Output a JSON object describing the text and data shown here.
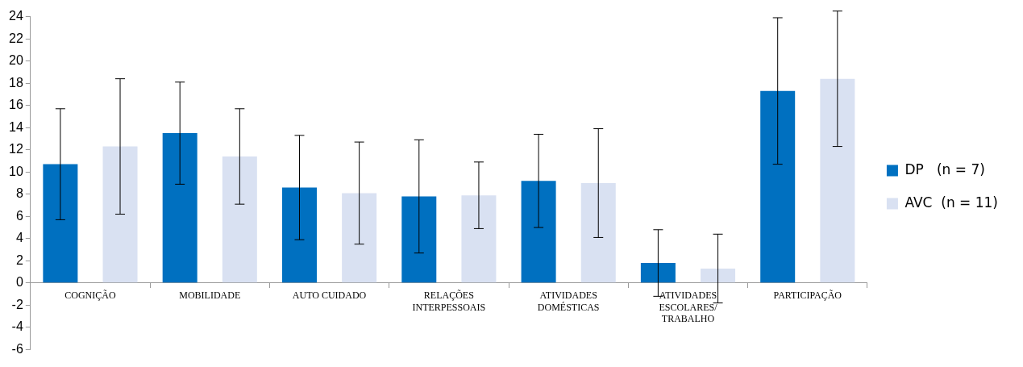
{
  "chart_data": {
    "type": "bar",
    "categories": [
      "COGNIÇÃO",
      "MOBILIDADE",
      "AUTO CUIDADO",
      "RELAÇÕES\nINTERPESSOAIS",
      "ATIVIDADES\nDOMÉSTICAS",
      "ATIVIDADES\nESCOLARES/\nTRABALHO",
      "PARTICIPAÇÃO"
    ],
    "series": [
      {
        "name": "DP   (n = 7)",
        "color": "#0070c0",
        "values": [
          10.7,
          13.5,
          8.6,
          7.8,
          9.2,
          1.8,
          17.3
        ],
        "errors": [
          5,
          4.6,
          4.7,
          5.1,
          4.2,
          3,
          6.6
        ]
      },
      {
        "name": "AVC  (n = 11)",
        "color": "#d9e1f2",
        "values": [
          12.3,
          11.4,
          8.1,
          7.9,
          9.0,
          1.3,
          18.4
        ],
        "errors": [
          6.1,
          4.3,
          4.6,
          3,
          4.9,
          3.1,
          6.1
        ]
      }
    ],
    "ylim": [
      -6,
      24
    ],
    "yticks": [
      -6,
      -4,
      -2,
      0,
      2,
      4,
      6,
      8,
      10,
      12,
      14,
      16,
      18,
      20,
      22,
      24
    ],
    "grid": false,
    "legend": "right"
  }
}
